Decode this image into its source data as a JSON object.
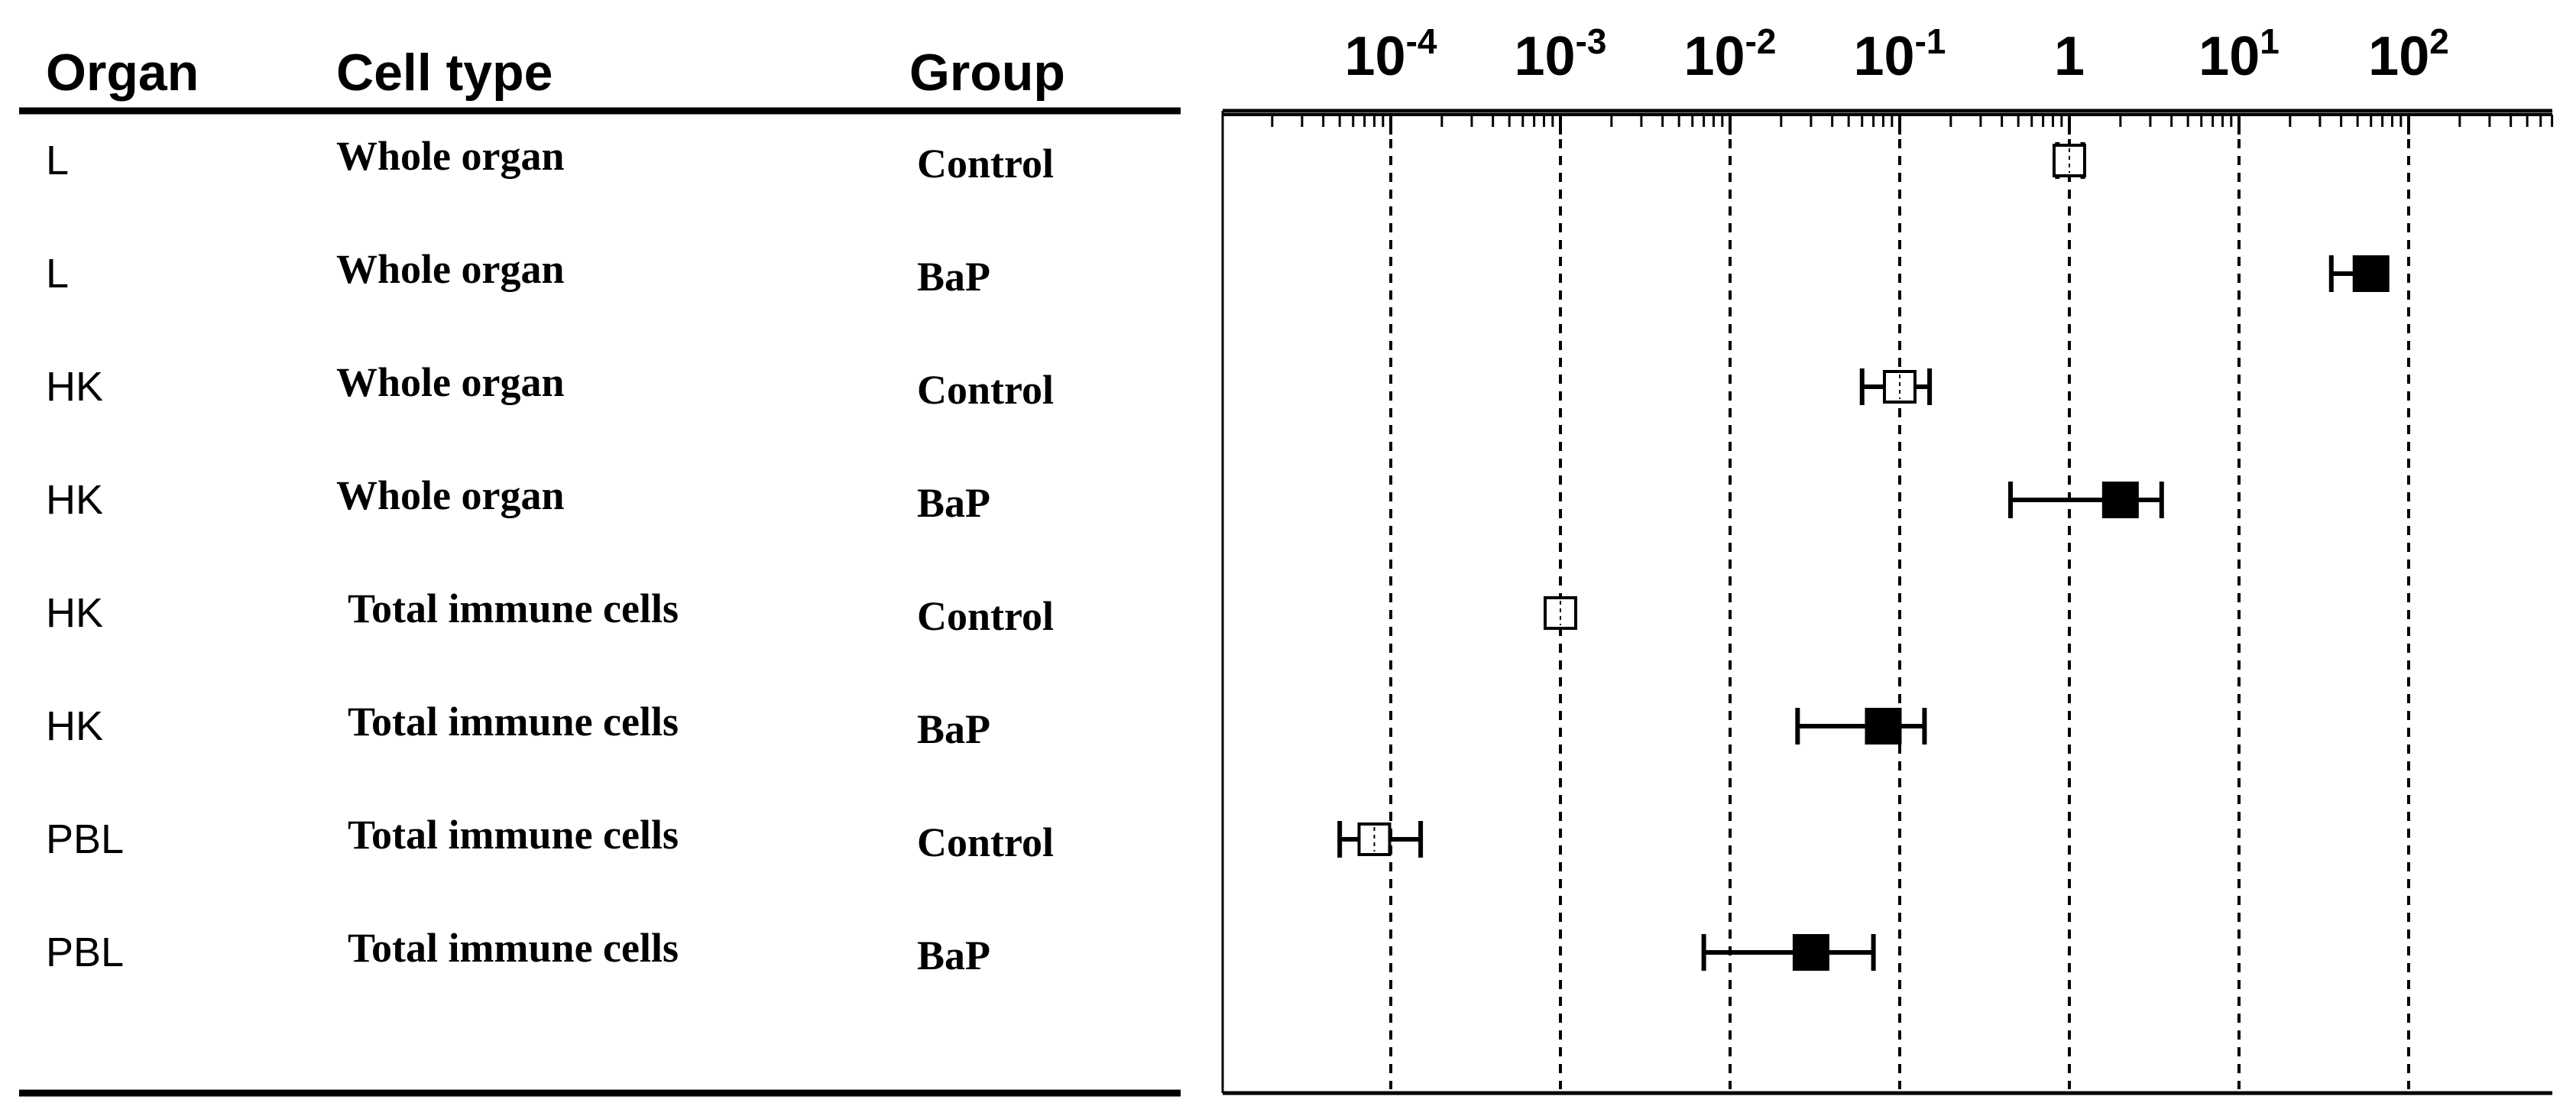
{
  "headers": {
    "organ": "Organ",
    "cell_type": "Cell type",
    "group": "Group"
  },
  "chart_data": {
    "type": "scatter",
    "x_scale": "log",
    "xlim": [
      1e-05,
      1000
    ],
    "grid": "vertical dashed at each decade",
    "x_ticks": [
      {
        "value": 0.0001,
        "base": "10",
        "exp": "-4"
      },
      {
        "value": 0.001,
        "base": "10",
        "exp": "-3"
      },
      {
        "value": 0.01,
        "base": "10",
        "exp": "-2"
      },
      {
        "value": 0.1,
        "base": "10",
        "exp": "-1"
      },
      {
        "value": 1,
        "base": "1",
        "exp": ""
      },
      {
        "value": 10,
        "base": "10",
        "exp": "1"
      },
      {
        "value": 100,
        "base": "10",
        "exp": "2"
      }
    ],
    "rows": [
      {
        "organ": "L",
        "cell_type": "Whole organ",
        "group": "Control",
        "value": 1.0,
        "lower": 0.85,
        "upper": 1.2,
        "marker": "open"
      },
      {
        "organ": "L",
        "cell_type": "Whole organ",
        "group": "BaP",
        "value": 60,
        "lower": 35,
        "upper": 60,
        "marker": "filled"
      },
      {
        "organ": "HK",
        "cell_type": "Whole organ",
        "group": "Control",
        "value": 0.1,
        "lower": 0.06,
        "upper": 0.15,
        "marker": "open"
      },
      {
        "organ": "HK",
        "cell_type": "Whole organ",
        "group": "BaP",
        "value": 2.0,
        "lower": 0.45,
        "upper": 3.5,
        "marker": "filled"
      },
      {
        "organ": "HK",
        "cell_type": "Total immune cells",
        "group": "Control",
        "value": 0.001,
        "lower": 0.001,
        "upper": 0.001,
        "marker": "open"
      },
      {
        "organ": "HK",
        "cell_type": "Total immune cells",
        "group": "BaP",
        "value": 0.08,
        "lower": 0.025,
        "upper": 0.14,
        "marker": "filled"
      },
      {
        "organ": "PBL",
        "cell_type": "Total immune cells",
        "group": "Control",
        "value": 8e-05,
        "lower": 5e-05,
        "upper": 0.00015,
        "marker": "open"
      },
      {
        "organ": "PBL",
        "cell_type": "Total immune cells",
        "group": "BaP",
        "value": 0.03,
        "lower": 0.007,
        "upper": 0.07,
        "marker": "filled"
      }
    ]
  }
}
